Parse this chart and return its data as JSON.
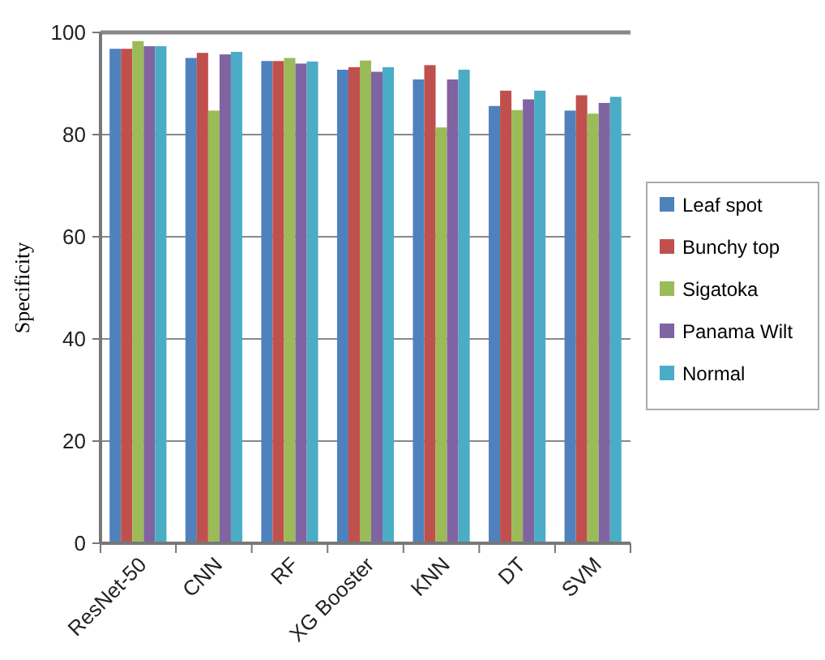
{
  "chart_data": {
    "type": "bar",
    "ylabel": "Specificity",
    "categories": [
      "ResNet-50",
      "CNN",
      "RF",
      "XG Booster",
      "KNN",
      "DT",
      "SVM"
    ],
    "series": [
      {
        "name": "Leaf spot",
        "color": "#4f81bd",
        "values": [
          96.8,
          95,
          94.4,
          92.7,
          90.8,
          85.6,
          84.7
        ]
      },
      {
        "name": "Bunchy top",
        "color": "#c0504d",
        "values": [
          96.8,
          96,
          94.4,
          93.2,
          93.6,
          88.6,
          87.7
        ]
      },
      {
        "name": "Sigatoka",
        "color": "#9bbb59",
        "values": [
          98.3,
          84.7,
          95,
          94.5,
          81.4,
          84.8,
          84.1
        ]
      },
      {
        "name": "Panama Wilt",
        "color": "#8064a2",
        "values": [
          97.3,
          95.7,
          93.9,
          92.3,
          90.8,
          86.9,
          86.2
        ]
      },
      {
        "name": "Normal",
        "color": "#4bacc6",
        "values": [
          97.3,
          96.2,
          94.3,
          93.2,
          92.7,
          88.6,
          87.4
        ]
      }
    ],
    "ylim": [
      0,
      100
    ],
    "yticks": [
      0,
      20,
      40,
      60,
      80,
      100
    ],
    "grid": "y",
    "legend": "right"
  }
}
